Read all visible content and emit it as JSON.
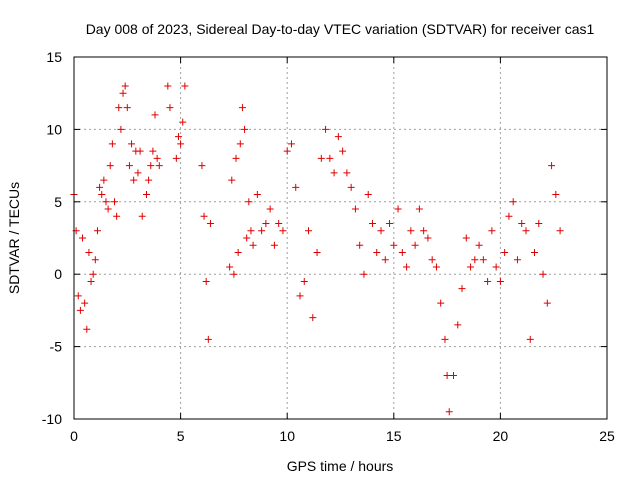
{
  "chart_data": {
    "type": "scatter",
    "title": "Day 008 of 2023, Sidereal Day-to-day VTEC variation (SDTVAR) for receiver cas1",
    "xlabel": "GPS time / hours",
    "ylabel": "SDTVAR / TECUs",
    "xlim": [
      0,
      25
    ],
    "ylim": [
      -10,
      15
    ],
    "xticks": [
      0,
      5,
      10,
      15,
      20,
      25
    ],
    "yticks": [
      -10,
      -5,
      0,
      5,
      10,
      15
    ],
    "xtick_labels": [
      "0",
      "5",
      "10",
      "15",
      "20",
      "25"
    ],
    "ytick_labels": [
      "-10",
      "-5",
      "0",
      "5",
      "10",
      "15"
    ],
    "grid": true,
    "marker": "+",
    "color": "#e00000",
    "series": [
      {
        "name": "SDTVAR",
        "x": [
          0.0,
          0.1,
          0.2,
          0.3,
          0.4,
          0.5,
          0.6,
          0.7,
          0.8,
          0.9,
          1.0,
          1.1,
          1.2,
          1.3,
          1.4,
          1.5,
          1.6,
          1.7,
          1.8,
          1.9,
          2.0,
          2.1,
          2.2,
          2.3,
          2.4,
          2.5,
          2.6,
          2.7,
          2.8,
          2.9,
          3.0,
          3.1,
          3.2,
          3.4,
          3.5,
          3.6,
          3.7,
          3.8,
          3.9,
          4.0,
          4.4,
          4.5,
          4.8,
          4.9,
          5.0,
          5.1,
          5.2,
          6.0,
          6.1,
          6.2,
          6.3,
          6.4,
          7.3,
          7.4,
          7.5,
          7.6,
          7.7,
          7.8,
          7.9,
          8.0,
          8.1,
          8.2,
          8.3,
          8.4,
          8.6,
          8.8,
          9.0,
          9.2,
          9.4,
          9.6,
          9.8,
          10.0,
          10.2,
          10.4,
          10.6,
          10.8,
          11.0,
          11.2,
          11.4,
          11.6,
          11.8,
          12.0,
          12.2,
          12.4,
          12.6,
          12.8,
          13.0,
          13.2,
          13.4,
          13.6,
          13.8,
          14.0,
          14.2,
          14.4,
          14.6,
          14.8,
          15.0,
          15.2,
          15.4,
          15.6,
          15.8,
          16.0,
          16.2,
          16.4,
          16.6,
          16.8,
          17.0,
          17.2,
          17.4,
          17.5,
          17.6,
          17.8,
          18.0,
          18.2,
          18.4,
          18.6,
          18.8,
          19.0,
          19.2,
          19.4,
          19.6,
          19.8,
          20.0,
          20.2,
          20.4,
          20.6,
          20.8,
          21.0,
          21.2,
          21.4,
          21.6,
          21.8,
          22.0,
          22.2,
          22.4,
          22.6,
          22.8
        ],
        "y": [
          5.5,
          3.0,
          -1.5,
          -2.5,
          2.5,
          -2.0,
          -3.8,
          1.5,
          -0.5,
          0.0,
          1.0,
          3.0,
          6.0,
          5.5,
          6.5,
          5.0,
          4.5,
          7.5,
          9.0,
          5.0,
          4.0,
          11.5,
          10.0,
          12.5,
          13.0,
          11.5,
          7.5,
          9.0,
          6.5,
          8.5,
          7.0,
          8.5,
          4.0,
          5.5,
          6.5,
          7.5,
          8.5,
          11.0,
          8.0,
          7.5,
          13.0,
          11.5,
          8.0,
          9.5,
          9.0,
          10.5,
          13.0,
          7.5,
          4.0,
          -0.5,
          -4.5,
          3.5,
          0.5,
          6.5,
          0.0,
          8.0,
          1.5,
          9.0,
          11.5,
          10.0,
          2.5,
          5.0,
          3.0,
          2.0,
          5.5,
          3.0,
          3.5,
          4.5,
          2.0,
          3.5,
          3.0,
          8.5,
          9.0,
          6.0,
          -1.5,
          -0.5,
          3.0,
          -3.0,
          1.5,
          8.0,
          10.0,
          8.0,
          7.0,
          9.5,
          8.5,
          7.0,
          6.0,
          4.5,
          2.0,
          0.0,
          5.5,
          3.5,
          1.5,
          3.0,
          1.0,
          3.5,
          2.0,
          4.5,
          1.5,
          0.5,
          3.0,
          2.0,
          4.5,
          3.0,
          2.5,
          1.0,
          0.5,
          -2.0,
          -4.5,
          -7.0,
          -9.5,
          -7.0,
          -3.5,
          -1.0,
          2.5,
          0.5,
          1.0,
          2.0,
          1.0,
          -0.5,
          3.0,
          0.5,
          -0.5,
          1.5,
          4.0,
          5.0,
          1.0,
          3.5,
          3.0,
          -4.5,
          1.5,
          3.5,
          0.0,
          -2.0,
          7.5,
          5.5,
          3.0
        ]
      }
    ]
  }
}
